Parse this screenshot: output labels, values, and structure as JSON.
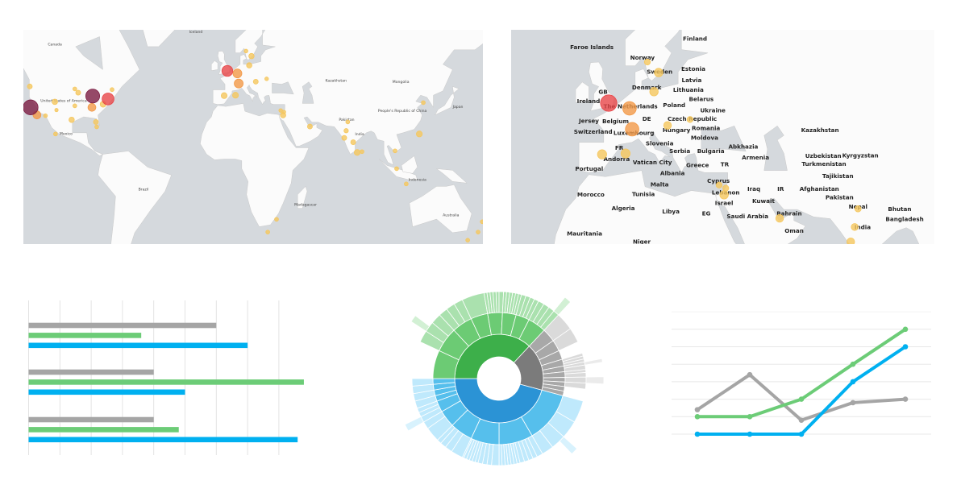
{
  "colors": {
    "sea": "#d5d9dd",
    "land": "#fbfbfb",
    "border": "#c9c9c9",
    "marker_low": "#f5c75e",
    "marker_mid": "#f39a48",
    "marker_high": "#e8474a",
    "marker_top": "#7c1d43",
    "series_gray": "#a5a5a5",
    "series_green": "#6ccc77",
    "series_blue": "#00b0f0"
  },
  "maps": [
    {
      "name": "world-map",
      "labels": [
        {
          "text": "Canada",
          "lon": -108,
          "lat": 60.3
        },
        {
          "text": "United States of America",
          "lon": -102.5,
          "lat": 37.8
        },
        {
          "text": "Mexico",
          "lon": -101,
          "lat": 19.8
        },
        {
          "text": "Iceland",
          "lon": -19.7,
          "lat": 64
        },
        {
          "text": "Brazil",
          "lon": -52.5,
          "lat": -14.5
        },
        {
          "text": "Kazakhstan",
          "lon": 68,
          "lat": 47
        },
        {
          "text": "Mongolia",
          "lon": 108.6,
          "lat": 46.5
        },
        {
          "text": "Pakistan",
          "lon": 74.7,
          "lat": 27.9
        },
        {
          "text": "India",
          "lon": 82.8,
          "lat": 19.4
        },
        {
          "text": "People's Republic of China",
          "lon": 109.6,
          "lat": 32.6
        },
        {
          "text": "Japan",
          "lon": 144.4,
          "lat": 34.7
        },
        {
          "text": "Indonesia",
          "lon": 119,
          "lat": -8.5
        },
        {
          "text": "Madagascar",
          "lon": 49,
          "lat": -23.6
        },
        {
          "text": "Australia",
          "lon": 140,
          "lat": -29.5
        }
      ]
    },
    {
      "name": "europe-map",
      "labels": [
        {
          "text": "Faroe Islands",
          "lon": -5.1,
          "lat": 60.6
        },
        {
          "text": "Finland",
          "lon": 26.1,
          "lat": 61.8
        },
        {
          "text": "Norway",
          "lon": 10.2,
          "lat": 59.0
        },
        {
          "text": "Sweden",
          "lon": 15.4,
          "lat": 58.0
        },
        {
          "text": "Estonia",
          "lon": 25.6,
          "lat": 57.2
        },
        {
          "text": "Latvia",
          "lon": 25.1,
          "lat": 55.3
        },
        {
          "text": "Lithuania",
          "lon": 24.1,
          "lat": 53.6
        },
        {
          "text": "Denmark",
          "lon": 11.5,
          "lat": 54.0
        },
        {
          "text": "GB",
          "lon": -1.7,
          "lat": 53.2
        },
        {
          "text": "Ireland",
          "lon": -6.1,
          "lat": 51.5
        },
        {
          "text": "The Netherlands",
          "lon": 6.6,
          "lat": 50.5
        },
        {
          "text": "Belarus",
          "lon": 28.0,
          "lat": 51.9
        },
        {
          "text": "Poland",
          "lon": 19.8,
          "lat": 50.7
        },
        {
          "text": "DE",
          "lon": 11.5,
          "lat": 49.6
        },
        {
          "text": "Belgium",
          "lon": 6.1,
          "lat": 49.1
        },
        {
          "text": "Luxembourg",
          "lon": 7.6,
          "lat": 48.3
        },
        {
          "text": "Czech Republic",
          "lon": 16.3,
          "lat": 48.0
        },
        {
          "text": "Ukraine",
          "lon": 31.5,
          "lat": 48.2
        },
        {
          "text": "Jersey",
          "lon": 1.7,
          "lat": 47.6
        },
        {
          "text": "FR",
          "lon": 3.2,
          "lat": 45.2
        },
        {
          "text": "Switzerland",
          "lon": 9.3,
          "lat": 45.4
        },
        {
          "text": "Hungary",
          "lon": 20.5,
          "lat": 45.7
        },
        {
          "text": "Moldova",
          "lon": 29.0,
          "lat": 45.7
        },
        {
          "text": "Slovenia",
          "lon": 15.4,
          "lat": 44.5
        },
        {
          "text": "Romania",
          "lon": 25.1,
          "lat": 44.5
        },
        {
          "text": "Serbia",
          "lon": 21.5,
          "lat": 42.8
        },
        {
          "text": "Bulgaria",
          "lon": 25.9,
          "lat": 41.1
        },
        {
          "text": "Andorra",
          "lon": 2.4,
          "lat": 41.0
        },
        {
          "text": "Portugal",
          "lon": -5.9,
          "lat": 38.8
        },
        {
          "text": "Vatican City",
          "lon": 13.2,
          "lat": 40.3
        },
        {
          "text": "Albania",
          "lon": 19.3,
          "lat": 39.6
        },
        {
          "text": "Greece",
          "lon": 22.7,
          "lat": 37.8
        },
        {
          "text": "TR",
          "lon": 35.1,
          "lat": 38.0
        },
        {
          "text": "Abkhazia",
          "lon": 40.7,
          "lat": 42.1
        },
        {
          "text": "Armenia",
          "lon": 44.4,
          "lat": 39.6
        },
        {
          "text": "Malta",
          "lon": 15.4,
          "lat": 35.0
        },
        {
          "text": "Tunisia",
          "lon": 10.5,
          "lat": 32.6
        },
        {
          "text": "Cyprus",
          "lon": 33.2,
          "lat": 34.0
        },
        {
          "text": "Lebanon",
          "lon": 35.4,
          "lat": 33.0
        },
        {
          "text": "Israel",
          "lon": 34.9,
          "lat": 30.3
        },
        {
          "text": "Iraq",
          "lon": 43.9,
          "lat": 31.9
        },
        {
          "text": "IR",
          "lon": 52.0,
          "lat": 31.9
        },
        {
          "text": "Morocco",
          "lon": -5.4,
          "lat": 30.5
        },
        {
          "text": "Algeria",
          "lon": 4.4,
          "lat": 26.8
        },
        {
          "text": "Libya",
          "lon": 18.8,
          "lat": 25.9
        },
        {
          "text": "EG",
          "lon": 29.5,
          "lat": 25.4
        },
        {
          "text": "Saudi Arabia",
          "lon": 42.0,
          "lat": 24.6
        },
        {
          "text": "Kuwait",
          "lon": 46.8,
          "lat": 28.8
        },
        {
          "text": "Bahrain",
          "lon": 50.0,
          "lat": 25.4
        },
        {
          "text": "Oman",
          "lon": 56.1,
          "lat": 20.6
        },
        {
          "text": "Mauritania",
          "lon": -7.3,
          "lat": 19.8
        },
        {
          "text": "Niger",
          "lon": 10.0,
          "lat": 17.5
        },
        {
          "text": "Kazakhstan",
          "lon": 63.9,
          "lat": 45.7
        },
        {
          "text": "Uzbekistan",
          "lon": 64.9,
          "lat": 40.0
        },
        {
          "text": "Kyrgyzstan",
          "lon": 76.1,
          "lat": 40.1
        },
        {
          "text": "Turkmenistan",
          "lon": 65.1,
          "lat": 38.1
        },
        {
          "text": "Tajikistan",
          "lon": 69.3,
          "lat": 37.1
        },
        {
          "text": "Afghanistan",
          "lon": 63.7,
          "lat": 31.9
        },
        {
          "text": "Pakistan",
          "lon": 69.8,
          "lat": 29.7
        },
        {
          "text": "Nepal",
          "lon": 75.4,
          "lat": 27.2
        },
        {
          "text": "Bhutan",
          "lon": 88.0,
          "lat": 26.6
        },
        {
          "text": "Bangladesh",
          "lon": 89.5,
          "lat": 23.8
        },
        {
          "text": "India",
          "lon": 76.8,
          "lat": 21.6
        }
      ]
    }
  ],
  "markers": [
    {
      "lon": -123.2,
      "lat": 35.0,
      "value": 12
    },
    {
      "lon": -84.3,
      "lat": 40.6,
      "value": 11
    },
    {
      "lon": -74.7,
      "lat": 39.2,
      "value": 9
    },
    {
      "lon": -119.2,
      "lat": 31.0,
      "value": 5
    },
    {
      "lon": -84.8,
      "lat": 35.0,
      "value": 5
    },
    {
      "lon": -123.7,
      "lat": 45.0,
      "value": 2
    },
    {
      "lon": -108,
      "lat": 37.8,
      "value": 2.5
    },
    {
      "lon": -113.9,
      "lat": 30.6,
      "value": 1
    },
    {
      "lon": -107,
      "lat": 33.6,
      "value": 0.5
    },
    {
      "lon": -97.5,
      "lat": 28.4,
      "value": 2.5
    },
    {
      "lon": -95.5,
      "lat": 43.9,
      "value": 1
    },
    {
      "lon": -93.4,
      "lat": 42.2,
      "value": 2
    },
    {
      "lon": -95.5,
      "lat": 35.8,
      "value": 1
    },
    {
      "lon": -77.8,
      "lat": 36.6,
      "value": 3
    },
    {
      "lon": -72.2,
      "lat": 43.6,
      "value": 1
    },
    {
      "lon": -82.3,
      "lat": 27.2,
      "value": 2
    },
    {
      "lon": -81.8,
      "lat": 24.4,
      "value": 1
    },
    {
      "lon": -107.6,
      "lat": 20.3,
      "value": 1
    },
    {
      "lon": 0,
      "lat": 51.5,
      "value": 8
    },
    {
      "lon": 6.3,
      "lat": 50.5,
      "value": 6
    },
    {
      "lon": 7.1,
      "lat": 46.3,
      "value": 6
    },
    {
      "lon": -2.0,
      "lat": 40.8,
      "value": 3
    },
    {
      "lon": 5.1,
      "lat": 41.0,
      "value": 3
    },
    {
      "lon": 11.7,
      "lat": 58.6,
      "value": 0.8
    },
    {
      "lon": 15.1,
      "lat": 56.9,
      "value": 2.5
    },
    {
      "lon": 13.7,
      "lat": 53.6,
      "value": 2.5
    },
    {
      "lon": 24.6,
      "lat": 48.3,
      "value": 0.8
    },
    {
      "lon": 17.8,
      "lat": 47.1,
      "value": 2
    },
    {
      "lon": 33.4,
      "lat": 33.4,
      "value": 0.8
    },
    {
      "lon": 35.4,
      "lat": 32.6,
      "value": 0.8
    },
    {
      "lon": 34.9,
      "lat": 30.9,
      "value": 2.5
    },
    {
      "lon": 51.7,
      "lat": 24.6,
      "value": 2
    },
    {
      "lon": 75.4,
      "lat": 27.2,
      "value": 1
    },
    {
      "lon": 74.4,
      "lat": 22.2,
      "value": 1.5
    },
    {
      "lon": 73.2,
      "lat": 18.0,
      "value": 2
    },
    {
      "lon": 78.8,
      "lat": 15.4,
      "value": 2
    },
    {
      "lon": 81.3,
      "lat": 9.1,
      "value": 3
    },
    {
      "lon": 84.3,
      "lat": 9.6,
      "value": 1
    },
    {
      "lon": 122.7,
      "lat": 37.4,
      "value": 1
    },
    {
      "lon": 120.2,
      "lat": 20.3,
      "value": 3
    },
    {
      "lon": 105,
      "lat": 10.1,
      "value": 1
    },
    {
      "lon": 106,
      "lat": -1.0,
      "value": 1
    },
    {
      "lon": 112,
      "lat": -10.5,
      "value": 1
    },
    {
      "lon": 30.8,
      "lat": -31.1,
      "value": 1
    },
    {
      "lon": 25.3,
      "lat": -37.7,
      "value": 1
    },
    {
      "lon": 157,
      "lat": -37.7,
      "value": 1
    },
    {
      "lon": 159.6,
      "lat": -32.4,
      "value": 1
    },
    {
      "lon": 150.5,
      "lat": -41.6,
      "value": 1
    }
  ],
  "chart_data": [
    {
      "type": "bar",
      "orientation": "horizontal",
      "categories": [
        "",
        "",
        ""
      ],
      "series": [
        {
          "color": "#a5a5a5",
          "values": [
            6,
            4,
            4
          ]
        },
        {
          "color": "#6ccc77",
          "values": [
            3.6,
            8.8,
            4.8
          ]
        },
        {
          "color": "#00b0f0",
          "values": [
            7,
            5,
            8.6
          ]
        }
      ],
      "xlim": [
        0,
        9
      ],
      "grid": true
    },
    {
      "type": "sunburst",
      "groups": [
        {
          "color": [
            "#2b93d5",
            "#56bfec",
            "#bfe9fc",
            "#d8f2fd"
          ],
          "value": 165,
          "children": [
            {
              "value": 45,
              "leaves": [
                15,
                12,
                10,
                8
              ],
              "outer": [
                2
              ]
            },
            {
              "value": 30,
              "leaves": [
                4,
                3,
                3,
                3,
                3,
                2,
                2,
                2,
                2,
                2,
                2,
                2
              ]
            },
            {
              "value": 25,
              "leaves": [
                5,
                3,
                3,
                3,
                2,
                2,
                2,
                2,
                2,
                1
              ]
            },
            {
              "value": 20,
              "leaves": [
                8,
                5,
                4,
                3
              ]
            },
            {
              "value": 15,
              "leaves": [
                10,
                5
              ]
            },
            {
              "value": 10,
              "leaves": [
                4,
                3,
                3
              ],
              "outer": [
                0
              ]
            },
            {
              "value": 5,
              "leaves": [
                5
              ]
            },
            {
              "value": 5,
              "leaves": [
                5
              ]
            },
            {
              "value": 5,
              "leaves": [
                5
              ]
            },
            {
              "value": 5,
              "leaves": [
                5
              ]
            }
          ]
        },
        {
          "color": [
            "#3daf4a",
            "#6ccb74",
            "#aae1ae",
            "#d2f0d4"
          ],
          "value": 133,
          "children": [
            {
              "value": 25,
              "leaves": []
            },
            {
              "value": 22,
              "leaves": [
                8,
                7,
                7
              ],
              "outer": [
                1
              ]
            },
            {
              "value": 18,
              "leaves": [
                6,
                6,
                6
              ]
            },
            {
              "value": 15,
              "leaves": [
                15
              ]
            },
            {
              "value": 13,
              "leaves": [
                2,
                2,
                2,
                2,
                2,
                3
              ]
            },
            {
              "value": 12,
              "leaves": [
                2,
                2,
                2,
                2,
                2,
                2
              ]
            },
            {
              "value": 12,
              "leaves": [
                3,
                3,
                3,
                3
              ]
            },
            {
              "value": 16,
              "leaves": [
                4,
                4,
                4,
                4
              ],
              "outer": [
                3
              ]
            }
          ]
        },
        {
          "color": [
            "#7b7b7b",
            "#a8a8a8",
            "#dadada",
            "#ebebeb"
          ],
          "value": 62,
          "children": [
            {
              "value": 12,
              "leaves": [
                12
              ]
            },
            {
              "value": 10,
              "leaves": [
                10
              ]
            },
            {
              "value": 8,
              "leaves": []
            },
            {
              "value": 6,
              "leaves": [
                2,
                2,
                2
              ]
            },
            {
              "value": 5,
              "leaves": [
                2,
                3
              ],
              "outer": [
                0
              ]
            },
            {
              "value": 5,
              "leaves": [
                2,
                3
              ]
            },
            {
              "value": 4,
              "leaves": [
                4
              ],
              "outer": [
                0
              ]
            },
            {
              "value": 4,
              "leaves": [
                4
              ]
            },
            {
              "value": 4,
              "leaves": []
            },
            {
              "value": 4,
              "leaves": []
            }
          ]
        }
      ]
    },
    {
      "type": "line",
      "x": [
        1,
        2,
        3,
        4,
        5
      ],
      "series": [
        {
          "color": "#a5a5a5",
          "values": [
            1.4,
            3.4,
            0.8,
            1.8,
            2.0
          ]
        },
        {
          "color": "#6ccc77",
          "values": [
            1,
            1,
            2,
            4,
            6
          ]
        },
        {
          "color": "#00b0f0",
          "values": [
            0,
            0,
            0,
            3,
            5
          ]
        }
      ],
      "ylim": [
        0,
        7
      ],
      "grid": true
    }
  ]
}
